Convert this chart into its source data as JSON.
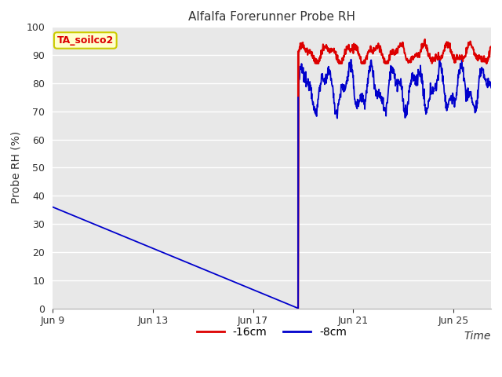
{
  "title": "Alfalfa Forerunner Probe RH",
  "ylabel": "Probe RH (%)",
  "xlabel": "Time",
  "ylim": [
    0,
    100
  ],
  "yticks": [
    0,
    10,
    20,
    30,
    40,
    50,
    60,
    70,
    80,
    90,
    100
  ],
  "fig_bg_color": "#ffffff",
  "plot_bg_color": "#e8e8e8",
  "legend_label_red": "-16cm",
  "legend_label_blue": "-8cm",
  "red_color": "#dd0000",
  "blue_color": "#0000cc",
  "annotation_text": "TA_soilco2",
  "annotation_bg": "#ffffcc",
  "annotation_border": "#cccc00",
  "x_ticklabels": [
    "Jun 9",
    "Jun 13",
    "Jun 17",
    "Jun 21",
    "Jun 25"
  ],
  "x_tick_positions": [
    0,
    4,
    8,
    12,
    16
  ],
  "xlim": [
    0,
    17.5
  ],
  "title_fontsize": 11,
  "tick_fontsize": 9,
  "ylabel_fontsize": 10,
  "xlabel_fontsize": 10
}
